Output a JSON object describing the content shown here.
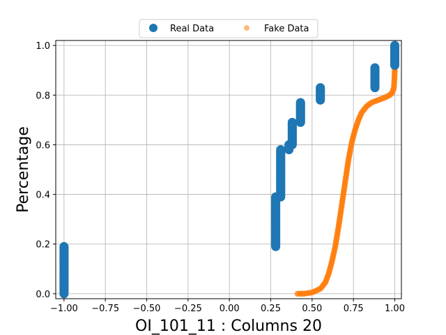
{
  "chart_data": {
    "type": "scatter",
    "title": "",
    "xlabel": "OI_101_11 : Columns 20",
    "ylabel": "Percentage",
    "xlim": [
      -1.05,
      1.04
    ],
    "ylim": [
      -0.02,
      1.02
    ],
    "xticks": [
      -1.0,
      -0.75,
      -0.5,
      -0.25,
      0.0,
      0.25,
      0.5,
      0.75,
      1.0
    ],
    "xtick_labels": [
      "−1.00",
      "−0.75",
      "−0.50",
      "−0.25",
      "0.00",
      "0.25",
      "0.50",
      "0.75",
      "1.00"
    ],
    "yticks": [
      0.0,
      0.2,
      0.4,
      0.6,
      0.8,
      1.0
    ],
    "ytick_labels": [
      "0.0",
      "0.2",
      "0.4",
      "0.6",
      "0.8",
      "1.0"
    ],
    "grid": true,
    "legend_position": "top-center",
    "series": [
      {
        "name": "Real Data",
        "color": "#1f77b4",
        "marker": "large-circle",
        "segments": [
          {
            "x": -1.0,
            "y_start": 0.0,
            "y_end": 0.19
          },
          {
            "x": 0.28,
            "y_start": 0.19,
            "y_end": 0.39
          },
          {
            "x": 0.31,
            "y_start": 0.39,
            "y_end": 0.58
          },
          {
            "x": 0.36,
            "y_start": 0.58,
            "y_end": 0.6
          },
          {
            "x": 0.38,
            "y_start": 0.6,
            "y_end": 0.69
          },
          {
            "x": 0.43,
            "y_start": 0.69,
            "y_end": 0.77
          },
          {
            "x": 0.55,
            "y_start": 0.78,
            "y_end": 0.83
          },
          {
            "x": 0.88,
            "y_start": 0.83,
            "y_end": 0.91
          },
          {
            "x": 1.0,
            "y_start": 0.92,
            "y_end": 1.0
          }
        ]
      },
      {
        "name": "Fake Data",
        "color": "#ff7f0e",
        "marker": "small-circle",
        "curve": [
          [
            0.41,
            0.0
          ],
          [
            0.45,
            0.0
          ],
          [
            0.5,
            0.005
          ],
          [
            0.55,
            0.02
          ],
          [
            0.58,
            0.045
          ],
          [
            0.6,
            0.08
          ],
          [
            0.62,
            0.13
          ],
          [
            0.64,
            0.19
          ],
          [
            0.66,
            0.27
          ],
          [
            0.68,
            0.36
          ],
          [
            0.7,
            0.45
          ],
          [
            0.72,
            0.54
          ],
          [
            0.74,
            0.61
          ],
          [
            0.76,
            0.66
          ],
          [
            0.78,
            0.7
          ],
          [
            0.8,
            0.73
          ],
          [
            0.83,
            0.755
          ],
          [
            0.86,
            0.77
          ],
          [
            0.9,
            0.78
          ],
          [
            0.94,
            0.79
          ],
          [
            0.97,
            0.8
          ],
          [
            0.985,
            0.81
          ],
          [
            0.995,
            0.83
          ],
          [
            1.0,
            0.9
          ],
          [
            1.0,
            1.0
          ]
        ]
      }
    ]
  }
}
